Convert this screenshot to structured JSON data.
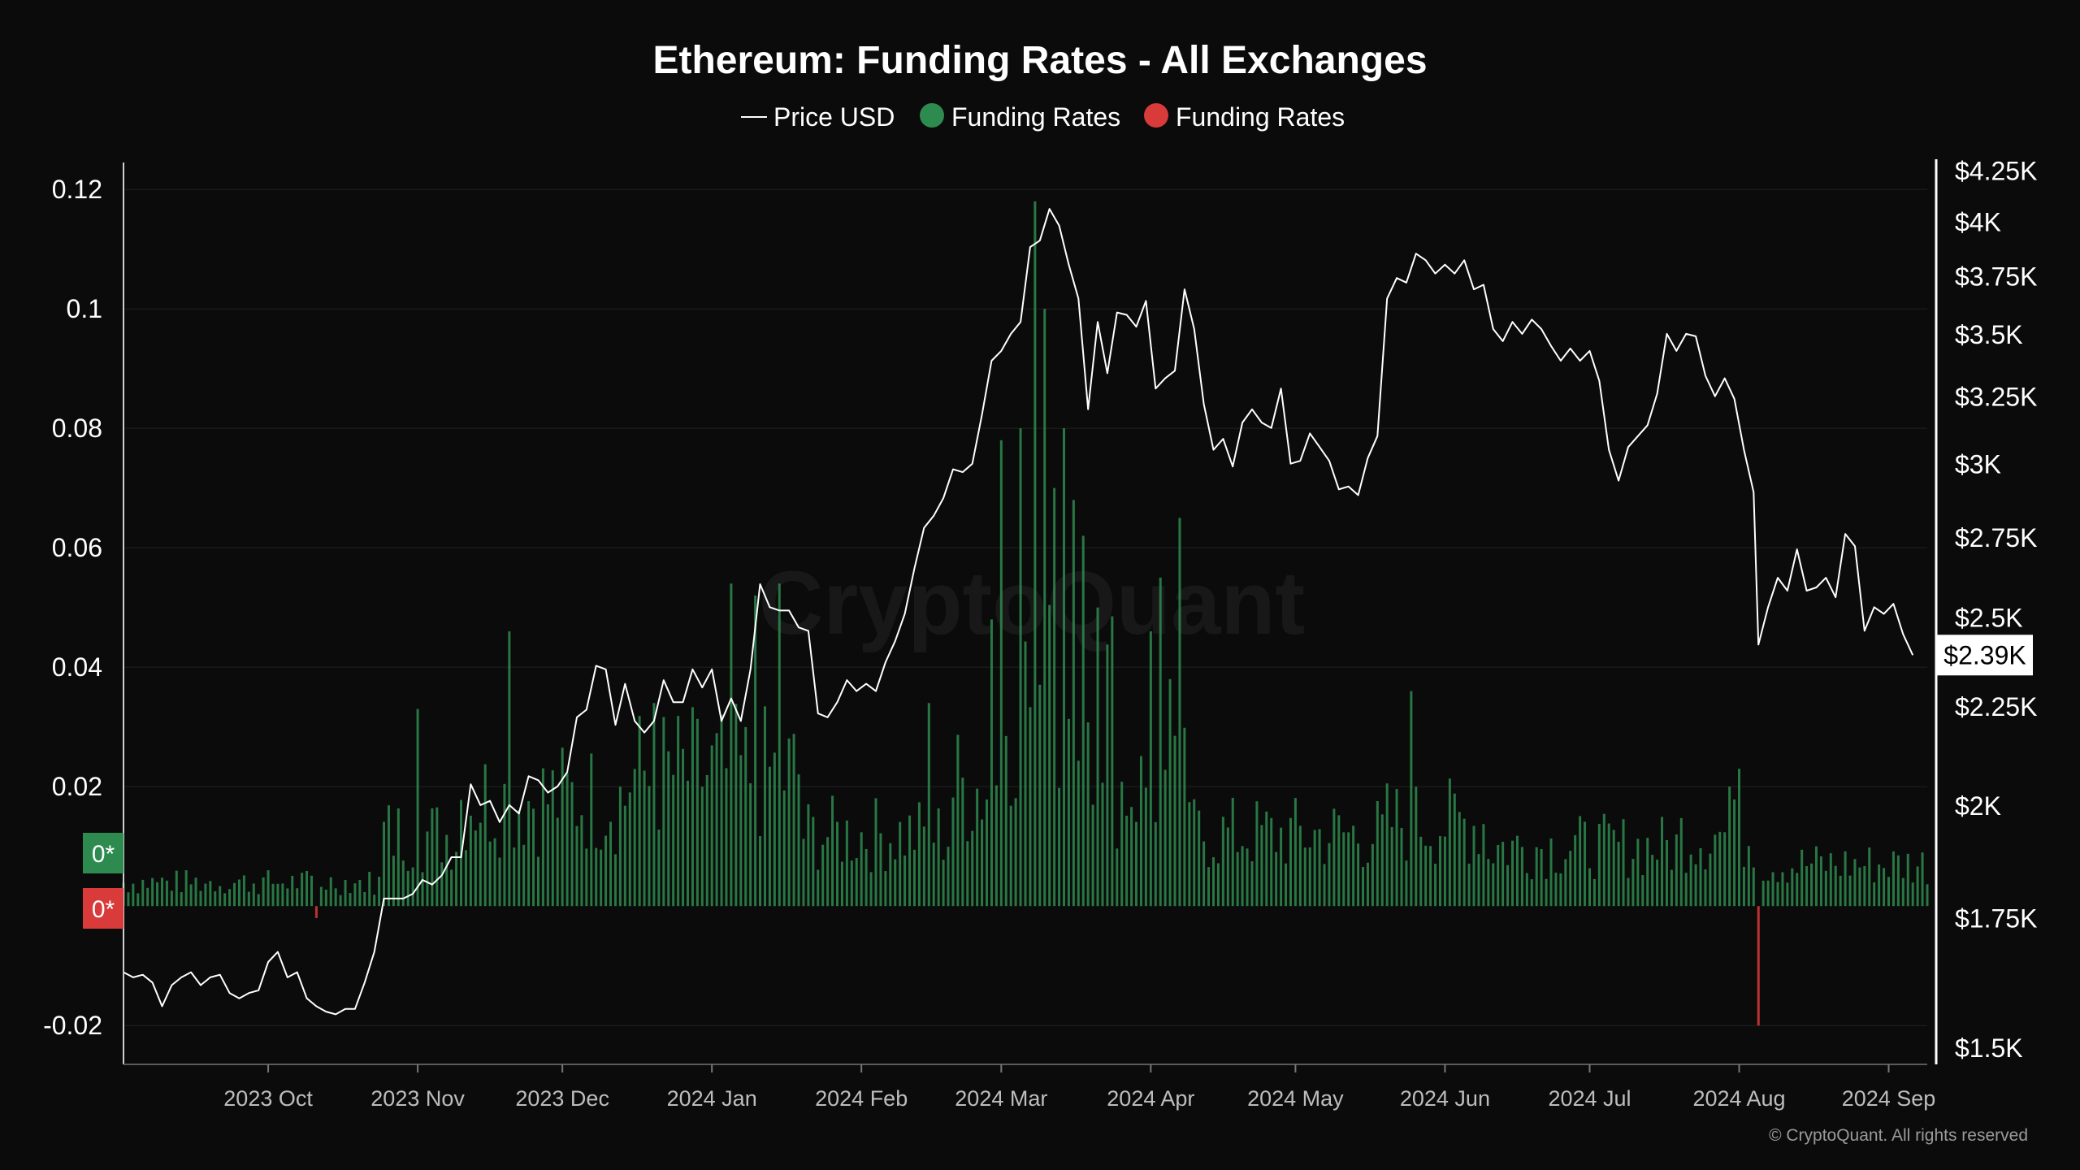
{
  "chart_data": {
    "type": "bar+line",
    "title": "Ethereum: Funding Rates - All Exchanges",
    "legend": [
      {
        "label": "Price USD",
        "marker": "line",
        "color": "#ffffff"
      },
      {
        "label": "Funding Rates",
        "marker": "dot",
        "color": "#2e8b4f"
      },
      {
        "label": "Funding Rates",
        "marker": "dot",
        "color": "#d93a3a"
      }
    ],
    "legend_position": "top-center",
    "watermark": "CryptoQuant",
    "credit": "© CryptoQuant. All rights reserved",
    "left_axis": {
      "ticks": [
        0.12,
        0.1,
        0.08,
        0.06,
        0.04,
        0.02,
        -0.02
      ],
      "tick_labels": [
        "0.12",
        "0.1",
        "0.08",
        "0.06",
        "0.04",
        "0.02",
        "-0.02"
      ],
      "range": [
        -0.0265,
        0.1245
      ],
      "zero_badges": [
        {
          "text": "0*",
          "color": "#2e8b4f"
        },
        {
          "text": "0*",
          "color": "#d93a3a"
        }
      ]
    },
    "right_axis": {
      "scale": "log",
      "ticks": [
        4250,
        4000,
        3750,
        3500,
        3250,
        3000,
        2750,
        2500,
        2250,
        2000,
        1750,
        1500
      ],
      "tick_labels": [
        "$4.25K",
        "$4K",
        "$3.75K",
        "$3.5K",
        "$3.25K",
        "$3K",
        "$2.75K",
        "$2.5K",
        "$2.25K",
        "$2K",
        "$1.75K",
        "$1.5K"
      ],
      "range": [
        1470,
        4290
      ],
      "current_value": 2390,
      "current_label": "$2.39K"
    },
    "x_axis": {
      "range": [
        "2023-09-01",
        "2024-09-09"
      ],
      "ticks": [
        "2023-10-01",
        "2023-11-01",
        "2023-12-01",
        "2024-01-01",
        "2024-02-01",
        "2024-03-01",
        "2024-04-01",
        "2024-05-01",
        "2024-06-01",
        "2024-07-01",
        "2024-08-01",
        "2024-09-01"
      ],
      "tick_labels": [
        "2023 Oct",
        "2023 Nov",
        "2023 Dec",
        "2024 Jan",
        "2024 Feb",
        "2024 Mar",
        "2024 Apr",
        "2024 May",
        "2024 Jun",
        "2024 Jul",
        "2024 Aug",
        "2024 Sep"
      ]
    },
    "grid": true,
    "price_series": {
      "name": "Price USD",
      "color": "#ffffff",
      "points": [
        [
          "2023-09-01",
          1640
        ],
        [
          "2023-09-03",
          1630
        ],
        [
          "2023-09-05",
          1635
        ],
        [
          "2023-09-07",
          1620
        ],
        [
          "2023-09-09",
          1575
        ],
        [
          "2023-09-11",
          1615
        ],
        [
          "2023-09-13",
          1630
        ],
        [
          "2023-09-15",
          1640
        ],
        [
          "2023-09-17",
          1615
        ],
        [
          "2023-09-19",
          1630
        ],
        [
          "2023-09-21",
          1635
        ],
        [
          "2023-09-23",
          1600
        ],
        [
          "2023-09-25",
          1590
        ],
        [
          "2023-09-27",
          1600
        ],
        [
          "2023-09-29",
          1605
        ],
        [
          "2023-10-01",
          1660
        ],
        [
          "2023-10-03",
          1680
        ],
        [
          "2023-10-05",
          1630
        ],
        [
          "2023-10-07",
          1640
        ],
        [
          "2023-10-09",
          1590
        ],
        [
          "2023-10-11",
          1575
        ],
        [
          "2023-10-13",
          1565
        ],
        [
          "2023-10-15",
          1560
        ],
        [
          "2023-10-17",
          1570
        ],
        [
          "2023-10-19",
          1570
        ],
        [
          "2023-10-21",
          1620
        ],
        [
          "2023-10-23",
          1680
        ],
        [
          "2023-10-25",
          1790
        ],
        [
          "2023-10-27",
          1790
        ],
        [
          "2023-10-29",
          1790
        ],
        [
          "2023-10-31",
          1800
        ],
        [
          "2023-11-02",
          1830
        ],
        [
          "2023-11-04",
          1820
        ],
        [
          "2023-11-06",
          1840
        ],
        [
          "2023-11-08",
          1880
        ],
        [
          "2023-11-10",
          1880
        ],
        [
          "2023-11-12",
          2050
        ],
        [
          "2023-11-14",
          2000
        ],
        [
          "2023-11-16",
          2010
        ],
        [
          "2023-11-18",
          1960
        ],
        [
          "2023-11-20",
          2000
        ],
        [
          "2023-11-22",
          1980
        ],
        [
          "2023-11-24",
          2070
        ],
        [
          "2023-11-26",
          2060
        ],
        [
          "2023-11-28",
          2030
        ],
        [
          "2023-11-30",
          2045
        ],
        [
          "2023-12-02",
          2080
        ],
        [
          "2023-12-04",
          2220
        ],
        [
          "2023-12-06",
          2240
        ],
        [
          "2023-12-08",
          2360
        ],
        [
          "2023-12-10",
          2350
        ],
        [
          "2023-12-12",
          2200
        ],
        [
          "2023-12-14",
          2310
        ],
        [
          "2023-12-16",
          2210
        ],
        [
          "2023-12-18",
          2180
        ],
        [
          "2023-12-20",
          2210
        ],
        [
          "2023-12-22",
          2320
        ],
        [
          "2023-12-24",
          2260
        ],
        [
          "2023-12-26",
          2260
        ],
        [
          "2023-12-28",
          2350
        ],
        [
          "2023-12-30",
          2300
        ],
        [
          "2024-01-01",
          2350
        ],
        [
          "2024-01-03",
          2210
        ],
        [
          "2024-01-05",
          2270
        ],
        [
          "2024-01-07",
          2210
        ],
        [
          "2024-01-09",
          2350
        ],
        [
          "2024-01-11",
          2600
        ],
        [
          "2024-01-13",
          2530
        ],
        [
          "2024-01-15",
          2520
        ],
        [
          "2024-01-17",
          2520
        ],
        [
          "2024-01-19",
          2470
        ],
        [
          "2024-01-21",
          2460
        ],
        [
          "2024-01-23",
          2230
        ],
        [
          "2024-01-25",
          2220
        ],
        [
          "2024-01-27",
          2260
        ],
        [
          "2024-01-29",
          2320
        ],
        [
          "2024-01-31",
          2290
        ],
        [
          "2024-02-02",
          2310
        ],
        [
          "2024-02-04",
          2290
        ],
        [
          "2024-02-06",
          2370
        ],
        [
          "2024-02-08",
          2430
        ],
        [
          "2024-02-10",
          2510
        ],
        [
          "2024-02-12",
          2650
        ],
        [
          "2024-02-14",
          2780
        ],
        [
          "2024-02-16",
          2820
        ],
        [
          "2024-02-18",
          2880
        ],
        [
          "2024-02-20",
          2980
        ],
        [
          "2024-02-22",
          2970
        ],
        [
          "2024-02-24",
          3000
        ],
        [
          "2024-02-26",
          3180
        ],
        [
          "2024-02-28",
          3390
        ],
        [
          "2024-03-01",
          3430
        ],
        [
          "2024-03-03",
          3500
        ],
        [
          "2024-03-05",
          3550
        ],
        [
          "2024-03-07",
          3880
        ],
        [
          "2024-03-09",
          3910
        ],
        [
          "2024-03-11",
          4060
        ],
        [
          "2024-03-13",
          3980
        ],
        [
          "2024-03-15",
          3800
        ],
        [
          "2024-03-17",
          3650
        ],
        [
          "2024-03-19",
          3200
        ],
        [
          "2024-03-21",
          3550
        ],
        [
          "2024-03-23",
          3340
        ],
        [
          "2024-03-25",
          3590
        ],
        [
          "2024-03-27",
          3580
        ],
        [
          "2024-03-29",
          3530
        ],
        [
          "2024-03-31",
          3640
        ],
        [
          "2024-04-02",
          3280
        ],
        [
          "2024-04-04",
          3320
        ],
        [
          "2024-04-06",
          3350
        ],
        [
          "2024-04-08",
          3690
        ],
        [
          "2024-04-10",
          3520
        ],
        [
          "2024-04-12",
          3220
        ],
        [
          "2024-04-14",
          3050
        ],
        [
          "2024-04-16",
          3090
        ],
        [
          "2024-04-18",
          2990
        ],
        [
          "2024-04-20",
          3150
        ],
        [
          "2024-04-22",
          3200
        ],
        [
          "2024-04-24",
          3150
        ],
        [
          "2024-04-26",
          3130
        ],
        [
          "2024-04-28",
          3280
        ],
        [
          "2024-04-30",
          3000
        ],
        [
          "2024-05-02",
          3010
        ],
        [
          "2024-05-04",
          3110
        ],
        [
          "2024-05-06",
          3060
        ],
        [
          "2024-05-08",
          3010
        ],
        [
          "2024-05-10",
          2910
        ],
        [
          "2024-05-12",
          2920
        ],
        [
          "2024-05-14",
          2890
        ],
        [
          "2024-05-16",
          3020
        ],
        [
          "2024-05-18",
          3100
        ],
        [
          "2024-05-20",
          3650
        ],
        [
          "2024-05-22",
          3740
        ],
        [
          "2024-05-24",
          3720
        ],
        [
          "2024-05-26",
          3850
        ],
        [
          "2024-05-28",
          3820
        ],
        [
          "2024-05-30",
          3760
        ],
        [
          "2024-06-01",
          3800
        ],
        [
          "2024-06-03",
          3760
        ],
        [
          "2024-06-05",
          3820
        ],
        [
          "2024-06-07",
          3690
        ],
        [
          "2024-06-09",
          3710
        ],
        [
          "2024-06-11",
          3520
        ],
        [
          "2024-06-13",
          3470
        ],
        [
          "2024-06-15",
          3550
        ],
        [
          "2024-06-17",
          3500
        ],
        [
          "2024-06-19",
          3560
        ],
        [
          "2024-06-21",
          3520
        ],
        [
          "2024-06-23",
          3450
        ],
        [
          "2024-06-25",
          3390
        ],
        [
          "2024-06-27",
          3440
        ],
        [
          "2024-06-29",
          3390
        ],
        [
          "2024-07-01",
          3430
        ],
        [
          "2024-07-03",
          3310
        ],
        [
          "2024-07-05",
          3050
        ],
        [
          "2024-07-07",
          2940
        ],
        [
          "2024-07-09",
          3060
        ],
        [
          "2024-07-11",
          3100
        ],
        [
          "2024-07-13",
          3140
        ],
        [
          "2024-07-15",
          3260
        ],
        [
          "2024-07-17",
          3500
        ],
        [
          "2024-07-19",
          3430
        ],
        [
          "2024-07-21",
          3500
        ],
        [
          "2024-07-23",
          3490
        ],
        [
          "2024-07-25",
          3330
        ],
        [
          "2024-07-27",
          3250
        ],
        [
          "2024-07-29",
          3320
        ],
        [
          "2024-07-31",
          3240
        ],
        [
          "2024-08-02",
          3050
        ],
        [
          "2024-08-04",
          2900
        ],
        [
          "2024-08-05",
          2420
        ],
        [
          "2024-08-07",
          2530
        ],
        [
          "2024-08-09",
          2620
        ],
        [
          "2024-08-11",
          2580
        ],
        [
          "2024-08-13",
          2710
        ],
        [
          "2024-08-15",
          2580
        ],
        [
          "2024-08-17",
          2590
        ],
        [
          "2024-08-19",
          2620
        ],
        [
          "2024-08-21",
          2560
        ],
        [
          "2024-08-23",
          2760
        ],
        [
          "2024-08-25",
          2720
        ],
        [
          "2024-08-27",
          2460
        ],
        [
          "2024-08-29",
          2530
        ],
        [
          "2024-08-31",
          2510
        ],
        [
          "2024-09-02",
          2540
        ],
        [
          "2024-09-04",
          2450
        ],
        [
          "2024-09-06",
          2390
        ]
      ]
    },
    "funding_series": {
      "name": "Funding Rates",
      "color_positive": "#2e8b4f",
      "color_negative": "#d93a3a",
      "spikes": [
        [
          "2023-11-01",
          0.033
        ],
        [
          "2023-11-20",
          0.046
        ],
        [
          "2023-12-20",
          0.034
        ],
        [
          "2024-01-05",
          0.054
        ],
        [
          "2024-01-10",
          0.052
        ],
        [
          "2024-01-15",
          0.054
        ],
        [
          "2024-02-15",
          0.034
        ],
        [
          "2024-02-28",
          0.048
        ],
        [
          "2024-03-01",
          0.078
        ],
        [
          "2024-03-05",
          0.08
        ],
        [
          "2024-03-08",
          0.118
        ],
        [
          "2024-03-10",
          0.1
        ],
        [
          "2024-03-12",
          0.07
        ],
        [
          "2024-03-14",
          0.08
        ],
        [
          "2024-03-16",
          0.068
        ],
        [
          "2024-03-18",
          0.062
        ],
        [
          "2024-03-21",
          0.05
        ],
        [
          "2024-04-01",
          0.046
        ],
        [
          "2024-04-03",
          0.055
        ],
        [
          "2024-04-05",
          0.038
        ],
        [
          "2024-04-07",
          0.065
        ],
        [
          "2024-05-25",
          0.036
        ],
        [
          "2024-08-05",
          -0.02
        ],
        [
          "2024-08-01",
          0.023
        ],
        [
          "2024-07-30",
          0.02
        ]
      ]
    }
  }
}
